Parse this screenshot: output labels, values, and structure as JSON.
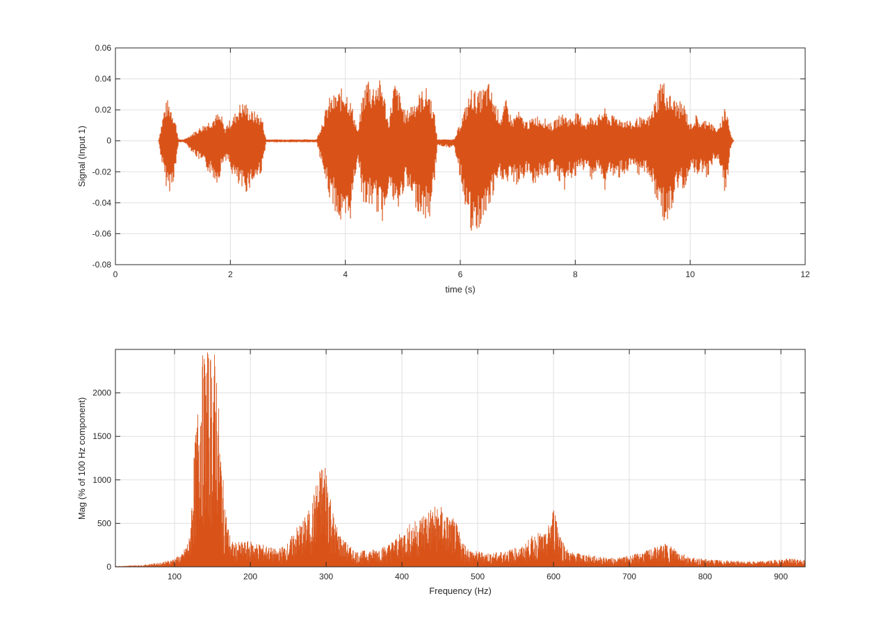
{
  "chart_data": [
    {
      "type": "line",
      "title": "",
      "xlabel": "time (s)",
      "ylabel": "Signal (Input 1)",
      "xlim": [
        0,
        12
      ],
      "ylim": [
        -0.08,
        0.06
      ],
      "xticks": [
        0,
        2,
        4,
        6,
        8,
        10,
        12
      ],
      "xtick_labels": [
        "0",
        "2",
        "4",
        "6",
        "8",
        "10",
        "12"
      ],
      "yticks": [
        -0.08,
        -0.06,
        -0.04,
        -0.02,
        0,
        0.02,
        0.04,
        0.06
      ],
      "ytick_labels": [
        "-0.08",
        "-0.06",
        "-0.04",
        "-0.02",
        "0",
        "0.02",
        "0.04",
        "0.06"
      ],
      "grid": true,
      "color": "#D95319",
      "series": [
        {
          "x": [
            0.75,
            0.85,
            0.9,
            0.95,
            1.0,
            1.05,
            1.1,
            1.2,
            1.78,
            1.85,
            1.9,
            1.95,
            2.05,
            2.15,
            2.25,
            2.35,
            2.45,
            2.55,
            2.62,
            3.0,
            3.5,
            3.72,
            3.8,
            3.9,
            4.0,
            4.1,
            4.15,
            4.22,
            4.3,
            4.4,
            4.45,
            4.55,
            4.65,
            4.75,
            4.85,
            4.95,
            5.0,
            5.05,
            5.15,
            5.25,
            5.35,
            5.45,
            5.55,
            5.6,
            5.9,
            6.2,
            6.25,
            6.3,
            6.4,
            6.5,
            6.6,
            6.7,
            6.8,
            6.9,
            7.0,
            7.1,
            7.2,
            7.3,
            7.4,
            7.5,
            7.6,
            7.7,
            7.8,
            7.9,
            8.0,
            8.1,
            8.2,
            8.3,
            8.4,
            8.5,
            8.6,
            8.7,
            8.8,
            8.9,
            9.0,
            9.1,
            9.2,
            9.3,
            9.4,
            9.5,
            9.6,
            9.7,
            9.8,
            9.9,
            10.0,
            10.1,
            10.2,
            10.3,
            10.4,
            10.5,
            10.6,
            10.65,
            10.7,
            10.75
          ],
          "upper": [
            0.0005,
            0.022,
            0.027,
            0.025,
            0.02,
            0.012,
            0.001,
            0.001,
            0.018,
            0.016,
            0.008,
            0.012,
            0.016,
            0.024,
            0.026,
            0.02,
            0.019,
            0.016,
            0.001,
            0.001,
            0.001,
            0.028,
            0.03,
            0.033,
            0.036,
            0.025,
            0.018,
            0.006,
            0.03,
            0.044,
            0.035,
            0.041,
            0.038,
            0.012,
            0.039,
            0.031,
            0.024,
            0.018,
            0.025,
            0.029,
            0.034,
            0.035,
            0.018,
            0.001,
            0.001,
            0.035,
            0.033,
            0.031,
            0.035,
            0.038,
            0.026,
            0.016,
            0.027,
            0.014,
            0.02,
            0.014,
            0.013,
            0.017,
            0.016,
            0.014,
            0.011,
            0.016,
            0.018,
            0.015,
            0.019,
            0.016,
            0.012,
            0.018,
            0.016,
            0.022,
            0.016,
            0.017,
            0.015,
            0.014,
            0.012,
            0.016,
            0.014,
            0.017,
            0.028,
            0.043,
            0.033,
            0.028,
            0.026,
            0.024,
            0.011,
            0.017,
            0.012,
            0.016,
            0.01,
            0.008,
            0.023,
            0.019,
            0.005,
            0.0005
          ],
          "lower": [
            -0.0005,
            -0.025,
            -0.032,
            -0.033,
            -0.028,
            -0.018,
            -0.001,
            -0.001,
            -0.028,
            -0.018,
            -0.012,
            -0.014,
            -0.024,
            -0.032,
            -0.035,
            -0.03,
            -0.026,
            -0.02,
            -0.001,
            -0.001,
            -0.001,
            -0.038,
            -0.043,
            -0.055,
            -0.061,
            -0.05,
            -0.03,
            -0.01,
            -0.04,
            -0.045,
            -0.042,
            -0.047,
            -0.054,
            -0.03,
            -0.045,
            -0.048,
            -0.034,
            -0.03,
            -0.04,
            -0.045,
            -0.05,
            -0.055,
            -0.028,
            -0.003,
            -0.005,
            -0.065,
            -0.07,
            -0.06,
            -0.055,
            -0.045,
            -0.035,
            -0.024,
            -0.03,
            -0.026,
            -0.03,
            -0.025,
            -0.022,
            -0.03,
            -0.022,
            -0.028,
            -0.018,
            -0.026,
            -0.034,
            -0.024,
            -0.025,
            -0.02,
            -0.019,
            -0.026,
            -0.018,
            -0.035,
            -0.02,
            -0.028,
            -0.022,
            -0.022,
            -0.018,
            -0.025,
            -0.02,
            -0.024,
            -0.04,
            -0.047,
            -0.06,
            -0.045,
            -0.03,
            -0.032,
            -0.018,
            -0.022,
            -0.02,
            -0.025,
            -0.014,
            -0.012,
            -0.038,
            -0.03,
            -0.005,
            -0.0005
          ]
        }
      ]
    },
    {
      "type": "line",
      "title": "",
      "xlabel": "Frequency (Hz)",
      "ylabel": "Mag (% of 100 Hz component)",
      "xlim": [
        22,
        932
      ],
      "ylim": [
        0,
        2500
      ],
      "xticks": [
        100,
        200,
        300,
        400,
        500,
        600,
        700,
        800,
        900
      ],
      "xtick_labels": [
        "100",
        "200",
        "300",
        "400",
        "500",
        "600",
        "700",
        "800",
        "900"
      ],
      "yticks": [
        0,
        500,
        1000,
        1500,
        2000
      ],
      "ytick_labels": [
        "0",
        "500",
        "1000",
        "1500",
        "2000"
      ],
      "grid": true,
      "color": "#D95319",
      "series": [
        {
          "x": [
            22,
            40,
            60,
            80,
            95,
            110,
            120,
            125,
            130,
            135,
            140,
            145,
            150,
            155,
            160,
            165,
            170,
            175,
            180,
            200,
            220,
            235,
            250,
            260,
            270,
            280,
            285,
            290,
            295,
            300,
            305,
            310,
            315,
            320,
            330,
            340,
            360,
            380,
            400,
            410,
            420,
            430,
            440,
            450,
            460,
            470,
            480,
            490,
            500,
            520,
            540,
            560,
            570,
            580,
            590,
            600,
            605,
            610,
            620,
            640,
            660,
            680,
            700,
            720,
            740,
            750,
            760,
            780,
            800,
            820,
            840,
            860,
            880,
            900,
            920,
            932
          ],
          "peak": [
            10,
            15,
            25,
            50,
            80,
            150,
            350,
            1200,
            1800,
            2400,
            2500,
            2500,
            2500,
            2500,
            1500,
            900,
            500,
            300,
            280,
            300,
            250,
            200,
            280,
            450,
            550,
            700,
            900,
            1100,
            1200,
            1250,
            900,
            600,
            450,
            350,
            250,
            180,
            200,
            250,
            400,
            500,
            550,
            650,
            700,
            720,
            600,
            550,
            300,
            200,
            180,
            160,
            200,
            240,
            350,
            400,
            380,
            700,
            600,
            350,
            180,
            150,
            120,
            100,
            130,
            180,
            250,
            270,
            220,
            110,
            90,
            80,
            70,
            60,
            70,
            90,
            100,
            80
          ]
        }
      ]
    }
  ]
}
